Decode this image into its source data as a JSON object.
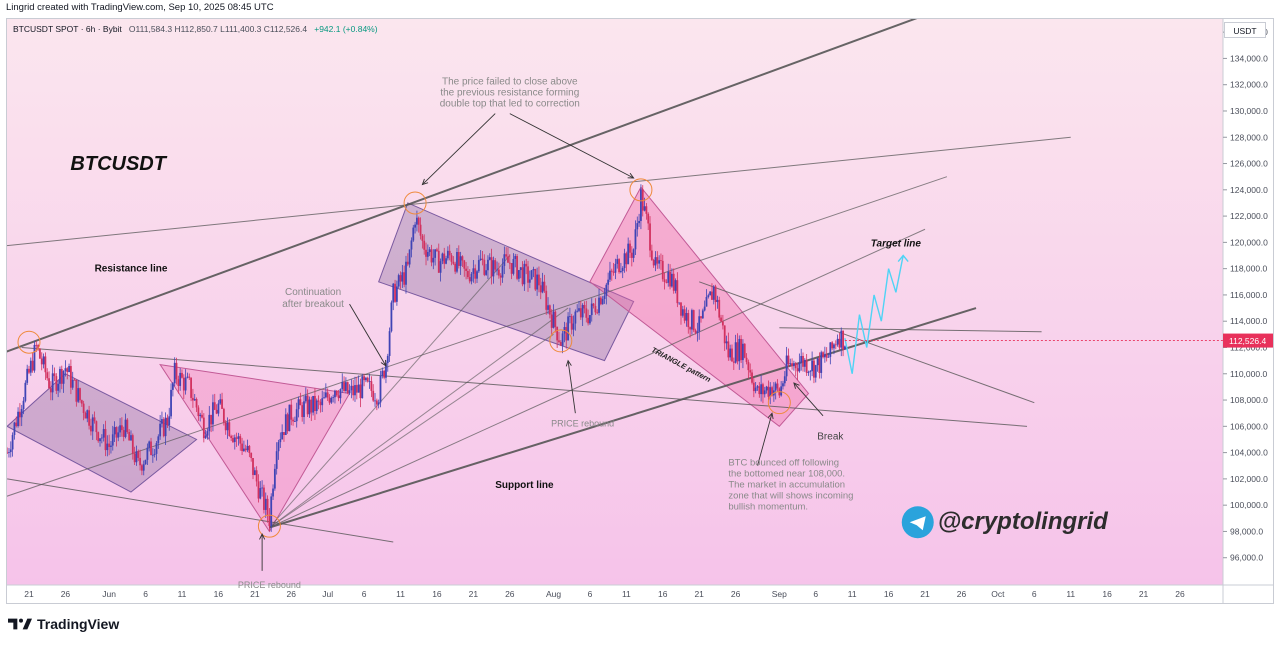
{
  "header": {
    "caption": "Lingrid created with TradingView.com, Sep 10, 2025 08:45 UTC"
  },
  "legend": {
    "symbol": "BTCUSDT SPOT · 6h · Bybit",
    "ohlc": "O111,584.3  H112,850.7  L111,400.3  C112,526.4",
    "change": "+942.1 (+0.84%)"
  },
  "price_axis": {
    "currency": "USDT",
    "last_price_label": "112,526.4"
  },
  "annotations": {
    "title": "BTCUSDT",
    "resistance": "Resistance line",
    "support": "Support line",
    "continuation": [
      "Continuation",
      "after breakout"
    ],
    "price_rebound_1": "PRICE rebound",
    "price_rebound_2": "PRICE rebound",
    "double_top": [
      "The price failed to close above",
      "the previous resistance forming",
      "double top that led to correction"
    ],
    "triangle": "TRIANGLE pattern",
    "target": "Target line",
    "break": "Break",
    "btc_bounced": [
      "BTC bounced off following",
      "the bottomed near 108,000.",
      "The market in accumulation",
      "zone that will shows incoming",
      "bullish momentum."
    ],
    "handle": "@cryptolingrid"
  },
  "footer": {
    "brand": "TradingView"
  },
  "colors": {
    "bg_top": "#fbe6ee",
    "bg_bottom": "#f6c3ea",
    "candle_up": "#3f44b5",
    "candle_down": "#d1315f",
    "zone_purple": "#8c6ea0",
    "zone_pink": "#ef6aa8",
    "price_tag": "#e8315b",
    "target_path": "#4fd3f5",
    "telegram_blue": "#2aa3dc"
  },
  "chart_data": {
    "type": "candlestick",
    "timeframe": "6h",
    "ylim": [
      94000,
      137000
    ],
    "y_ticks": [
      96000,
      98000,
      100000,
      102000,
      104000,
      106000,
      108000,
      110000,
      112000,
      114000,
      116000,
      118000,
      120000,
      122000,
      124000,
      126000,
      128000,
      130000,
      132000,
      134000,
      136000
    ],
    "y_tick_labels": [
      "96,000.0",
      "98,000.0",
      "100,000.0",
      "102,000.0",
      "104,000.0",
      "106,000.0",
      "108,000.0",
      "110,000.0",
      "112,000.0",
      "114,000.0",
      "116,000.0",
      "118,000.0",
      "120,000.0",
      "122,000.0",
      "124,000.0",
      "126,000.0",
      "128,000.0",
      "130,000.0",
      "132,000.0",
      "134,000.0",
      "136,000.0"
    ],
    "x_ticks": [
      {
        "label": "21",
        "date": "2025-05-21"
      },
      {
        "label": "26",
        "date": "2025-05-26"
      },
      {
        "label": "Jun",
        "date": "2025-06-01"
      },
      {
        "label": "6",
        "date": "2025-06-06"
      },
      {
        "label": "11",
        "date": "2025-06-11"
      },
      {
        "label": "16",
        "date": "2025-06-16"
      },
      {
        "label": "21",
        "date": "2025-06-21"
      },
      {
        "label": "26",
        "date": "2025-06-26"
      },
      {
        "label": "Jul",
        "date": "2025-07-01"
      },
      {
        "label": "6",
        "date": "2025-07-06"
      },
      {
        "label": "11",
        "date": "2025-07-11"
      },
      {
        "label": "16",
        "date": "2025-07-16"
      },
      {
        "label": "21",
        "date": "2025-07-21"
      },
      {
        "label": "26",
        "date": "2025-07-26"
      },
      {
        "label": "Aug",
        "date": "2025-08-01"
      },
      {
        "label": "6",
        "date": "2025-08-06"
      },
      {
        "label": "11",
        "date": "2025-08-11"
      },
      {
        "label": "16",
        "date": "2025-08-16"
      },
      {
        "label": "21",
        "date": "2025-08-21"
      },
      {
        "label": "26",
        "date": "2025-08-26"
      },
      {
        "label": "Sep",
        "date": "2025-09-01"
      },
      {
        "label": "6",
        "date": "2025-09-06"
      },
      {
        "label": "11",
        "date": "2025-09-11"
      },
      {
        "label": "16",
        "date": "2025-09-16"
      },
      {
        "label": "21",
        "date": "2025-09-21"
      },
      {
        "label": "26",
        "date": "2025-09-26"
      },
      {
        "label": "Oct",
        "date": "2025-10-01"
      },
      {
        "label": "6",
        "date": "2025-10-06"
      },
      {
        "label": "11",
        "date": "2025-10-11"
      },
      {
        "label": "16",
        "date": "2025-10-16"
      },
      {
        "label": "21",
        "date": "2025-10-21"
      },
      {
        "label": "26",
        "date": "2025-10-26"
      }
    ],
    "price_path": [
      [
        "2025-05-18",
        104000
      ],
      [
        "2025-05-20",
        108000
      ],
      [
        "2025-05-22",
        112000
      ],
      [
        "2025-05-24",
        109000
      ],
      [
        "2025-05-26",
        110500
      ],
      [
        "2025-05-28",
        108000
      ],
      [
        "2025-05-30",
        106000
      ],
      [
        "2025-06-01",
        104500
      ],
      [
        "2025-06-03",
        106000
      ],
      [
        "2025-06-05",
        103000
      ],
      [
        "2025-06-07",
        104500
      ],
      [
        "2025-06-09",
        106500
      ],
      [
        "2025-06-10",
        110000
      ],
      [
        "2025-06-12",
        109000
      ],
      [
        "2025-06-14",
        106000
      ],
      [
        "2025-06-16",
        107500
      ],
      [
        "2025-06-18",
        105500
      ],
      [
        "2025-06-20",
        104000
      ],
      [
        "2025-06-22",
        100500
      ],
      [
        "2025-06-23",
        99000
      ],
      [
        "2025-06-24",
        105000
      ],
      [
        "2025-06-26",
        107000
      ],
      [
        "2025-06-28",
        107500
      ],
      [
        "2025-06-30",
        107500
      ],
      [
        "2025-07-02",
        109000
      ],
      [
        "2025-07-04",
        108500
      ],
      [
        "2025-07-06",
        109000
      ],
      [
        "2025-07-08",
        108500
      ],
      [
        "2025-07-09",
        111000
      ],
      [
        "2025-07-10",
        116000
      ],
      [
        "2025-07-12",
        118000
      ],
      [
        "2025-07-13",
        122000
      ],
      [
        "2025-07-14",
        120000
      ],
      [
        "2025-07-16",
        118500
      ],
      [
        "2025-07-18",
        119000
      ],
      [
        "2025-07-20",
        117500
      ],
      [
        "2025-07-22",
        118500
      ],
      [
        "2025-07-24",
        118000
      ],
      [
        "2025-07-26",
        118500
      ],
      [
        "2025-07-28",
        117500
      ],
      [
        "2025-07-30",
        117000
      ],
      [
        "2025-08-01",
        114000
      ],
      [
        "2025-08-02",
        112500
      ],
      [
        "2025-08-04",
        114500
      ],
      [
        "2025-08-06",
        114500
      ],
      [
        "2025-08-08",
        116500
      ],
      [
        "2025-08-10",
        118500
      ],
      [
        "2025-08-12",
        119500
      ],
      [
        "2025-08-13",
        123500
      ],
      [
        "2025-08-14",
        121000
      ],
      [
        "2025-08-15",
        118000
      ],
      [
        "2025-08-17",
        117500
      ],
      [
        "2025-08-19",
        114500
      ],
      [
        "2025-08-21",
        113500
      ],
      [
        "2025-08-23",
        116500
      ],
      [
        "2025-08-25",
        111500
      ],
      [
        "2025-08-27",
        112000
      ],
      [
        "2025-08-29",
        108500
      ],
      [
        "2025-08-31",
        109000
      ],
      [
        "2025-09-01",
        108500
      ],
      [
        "2025-09-02",
        110500
      ],
      [
        "2025-09-04",
        111000
      ],
      [
        "2025-09-06",
        110500
      ],
      [
        "2025-09-08",
        111500
      ],
      [
        "2025-09-09",
        113000
      ],
      [
        "2025-09-10",
        112526.4
      ]
    ]
  }
}
